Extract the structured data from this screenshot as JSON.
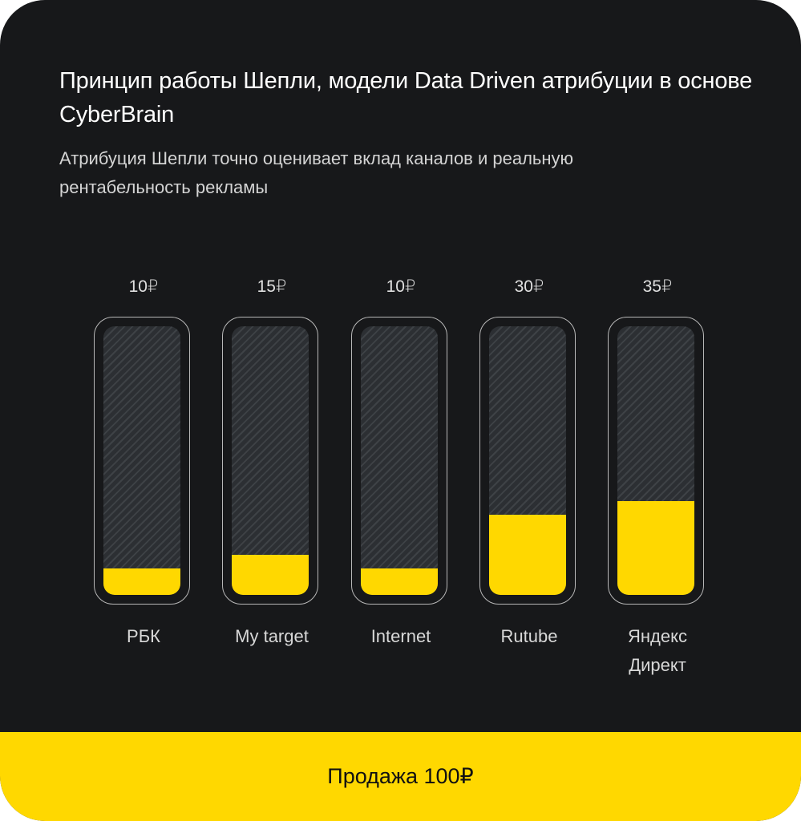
{
  "header": {
    "title": "Принцип работы Шепли, модели Data Driven атрибуции в основе CyberBrain",
    "subtitle": "Атрибуция Шепли точно оценивает вклад каналов и реальную рентабельность рекламы"
  },
  "bars": [
    {
      "label": "РБК",
      "value_label": "10₽",
      "value": 10
    },
    {
      "label": "My target",
      "value_label": "15₽",
      "value": 15
    },
    {
      "label": "Internet",
      "value_label": "10₽",
      "value": 10
    },
    {
      "label": "Rutube",
      "value_label": "30₽",
      "value": 30
    },
    {
      "label": "Яндекс Директ",
      "value_label": "35₽",
      "value": 35
    }
  ],
  "footer": {
    "label": "Продажа 100₽"
  },
  "colors": {
    "background": "#17181a",
    "accent": "#ffd800",
    "text": "#ffffff"
  },
  "chart_data": {
    "type": "bar",
    "title": "Принцип работы Шепли, модели Data Driven атрибуции в основе CyberBrain",
    "subtitle": "Атрибуция Шепли точно оценивает вклад каналов и реальную рентабельность рекламы",
    "categories": [
      "РБК",
      "My target",
      "Internet",
      "Rutube",
      "Яндекс Директ"
    ],
    "values": [
      10,
      15,
      10,
      30,
      35
    ],
    "value_labels": [
      "10₽",
      "15₽",
      "10₽",
      "30₽",
      "35₽"
    ],
    "unit": "₽",
    "total": 100,
    "total_label": "Продажа 100₽",
    "xlabel": "",
    "ylabel": "",
    "ylim": [
      0,
      100
    ],
    "grid": false,
    "legend": "none"
  }
}
